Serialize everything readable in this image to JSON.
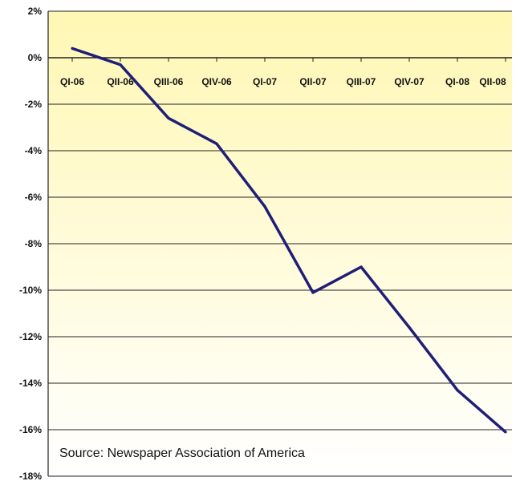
{
  "chart_data": {
    "type": "line",
    "title": "",
    "xlabel": "",
    "ylabel": "",
    "categories": [
      "QI-06",
      "QII-06",
      "QIII-06",
      "QIV-06",
      "QI-07",
      "QII-07",
      "QIII-07",
      "QIV-07",
      "QI-08",
      "QII-08"
    ],
    "series": [
      {
        "values": [
          0.4,
          -0.3,
          -2.6,
          -3.7,
          -6.4,
          -10.1,
          -9.0,
          -11.6,
          -14.3,
          -16.1
        ]
      }
    ],
    "ylim": [
      -18,
      2
    ],
    "yticks": [
      "2%",
      "0%",
      "-2%",
      "-4%",
      "-6%",
      "-8%",
      "-10%",
      "-12%",
      "-14%",
      "-16%",
      "-18%"
    ],
    "grid": true,
    "annotation": "Source: Newspaper Association of America",
    "colors": {
      "line": "#1f1f78",
      "plot_top": "#fff7b3",
      "plot_bottom": "#ffffff",
      "grid": "#222222"
    }
  }
}
